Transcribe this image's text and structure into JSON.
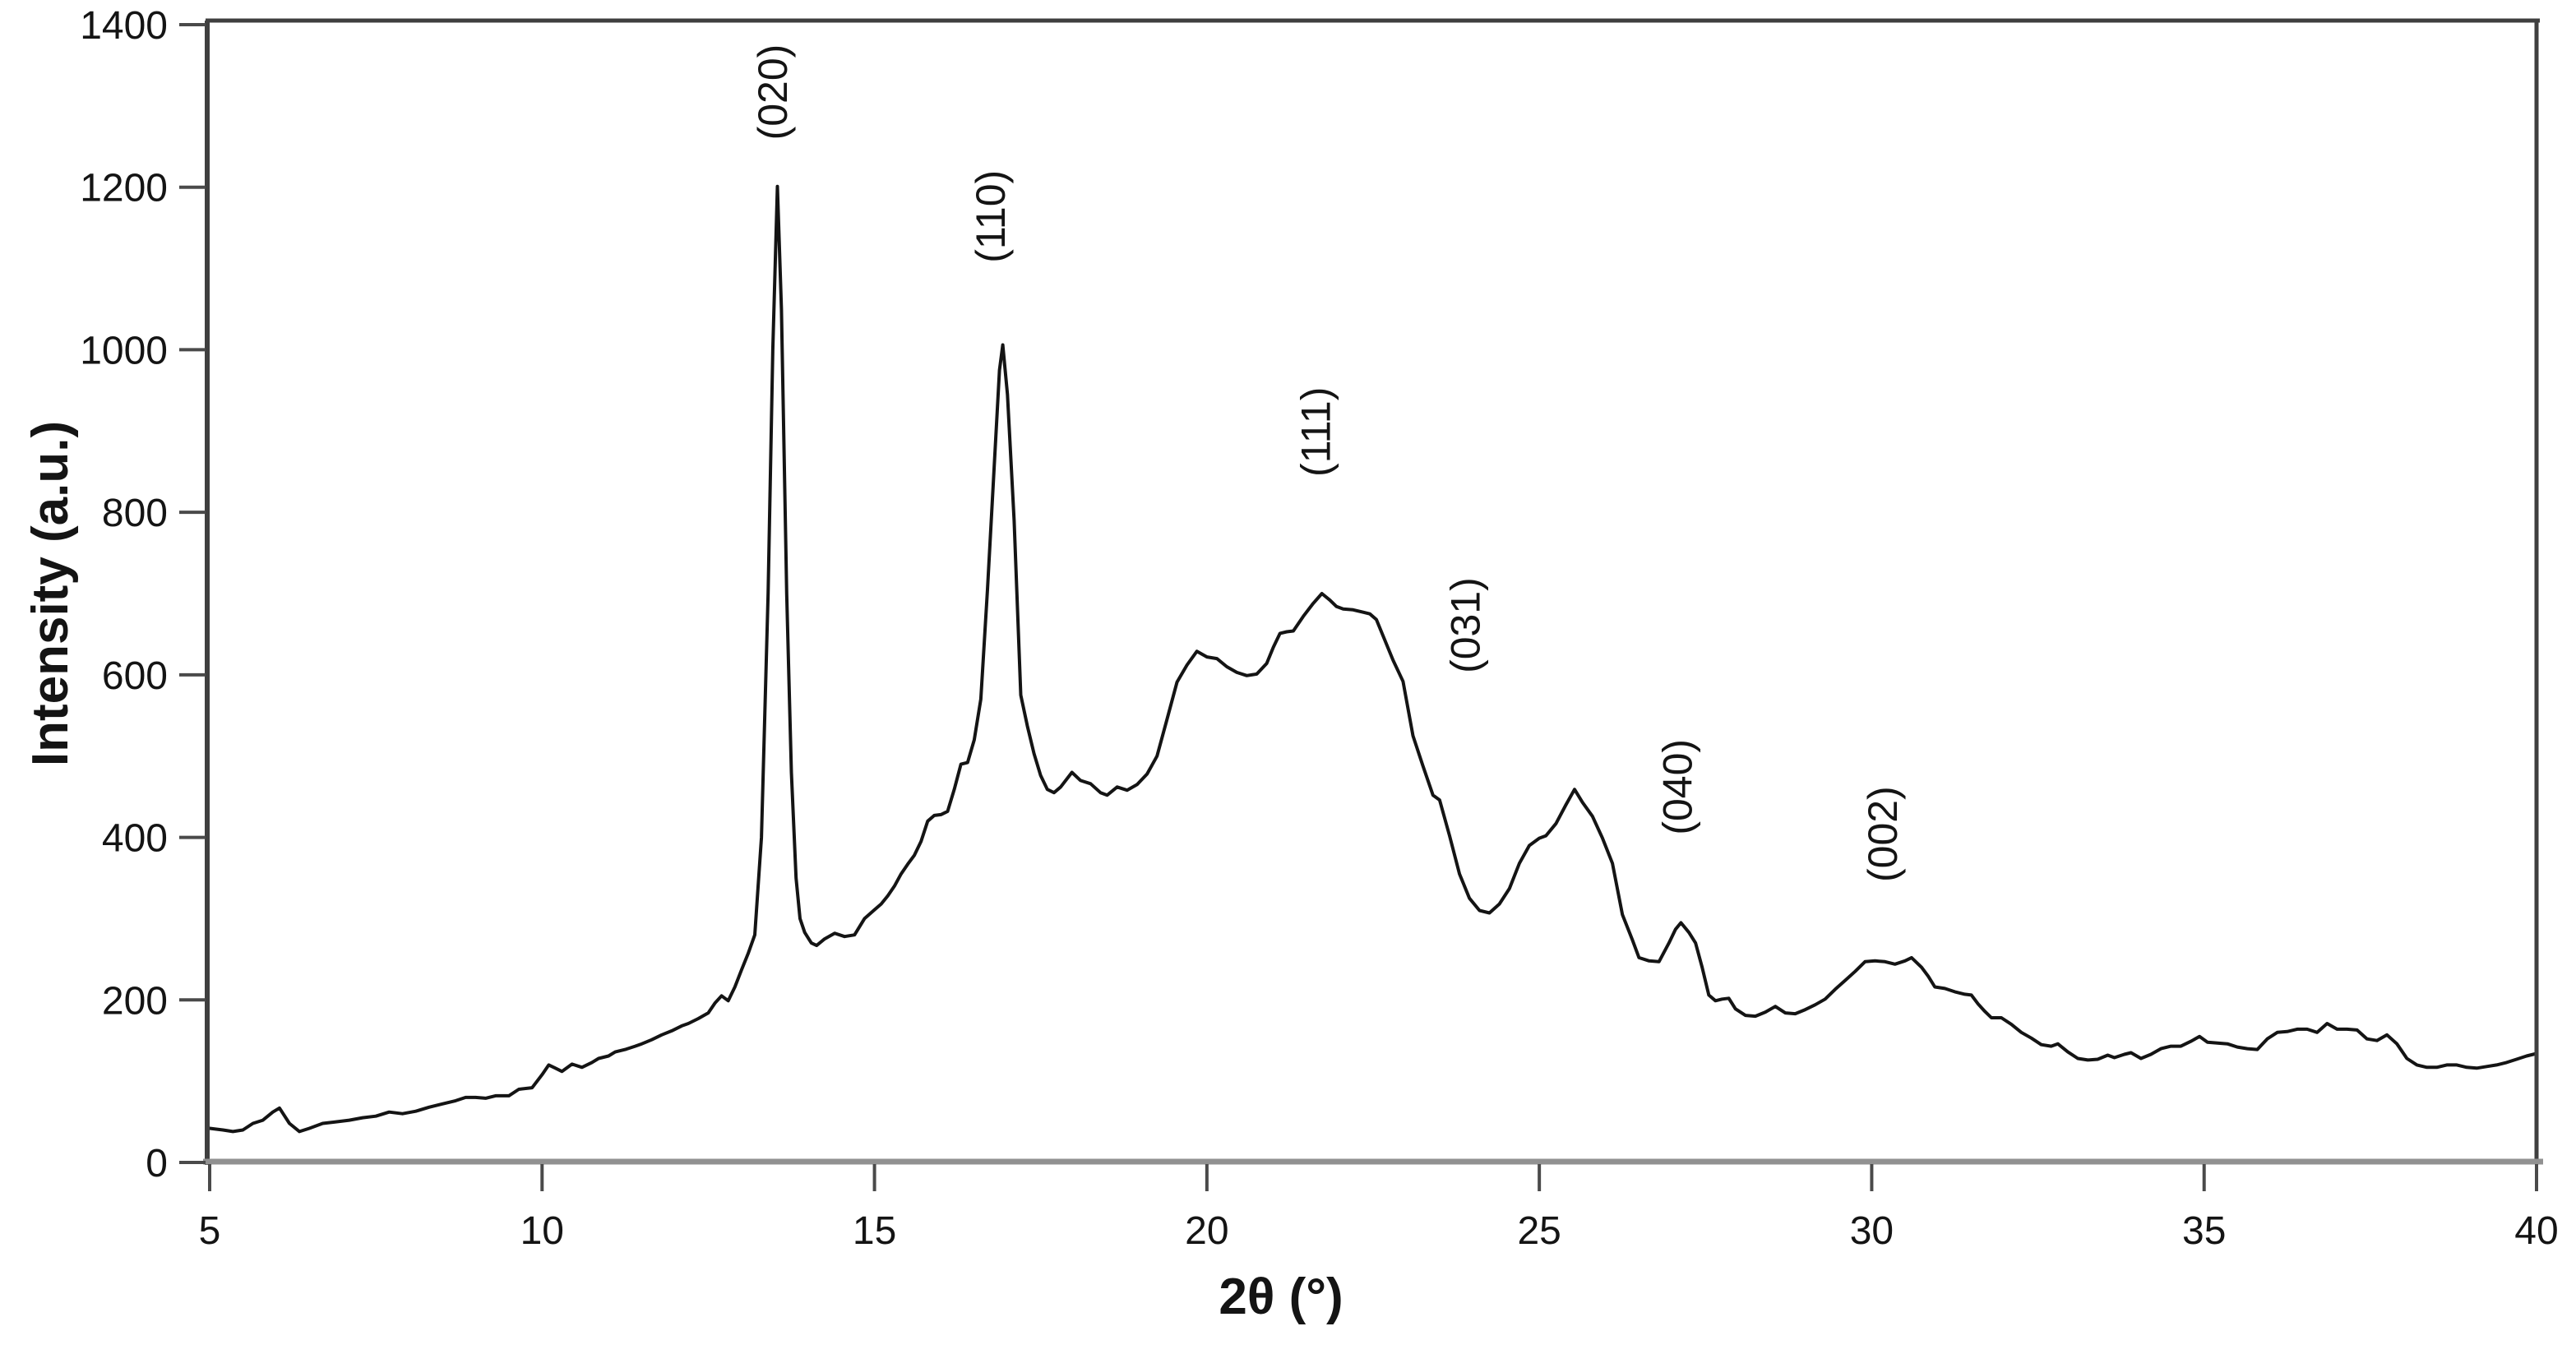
{
  "figure": {
    "description": "X-ray diffraction pattern with indexed peaks",
    "background_color": "#ffffff",
    "line_color": "#141414",
    "frame_color": "#3f3f3f",
    "baseline_color": "#919191",
    "tick_color": "#4a4a4a",
    "text_color": "#141414"
  },
  "chart_data": {
    "type": "line",
    "title": "",
    "xlabel": "2θ (°)",
    "ylabel": "Intensity (a.u.)",
    "xlim": [
      5,
      40
    ],
    "ylim": [
      0,
      1400
    ],
    "x_ticks": [
      5,
      10,
      15,
      20,
      25,
      30,
      35,
      40
    ],
    "y_ticks": [
      0,
      200,
      400,
      600,
      800,
      1000,
      1200,
      1400
    ],
    "grid": false,
    "legend": "none",
    "peaks": [
      {
        "hkl": "(020)",
        "two_theta": 13.54,
        "intensity": 1201,
        "label_two_theta": 13.47,
        "label_intensity": 1317
      },
      {
        "hkl": "(110)",
        "two_theta": 16.93,
        "intensity": 1006,
        "label_two_theta": 16.75,
        "label_intensity": 1164
      },
      {
        "hkl": "(111)",
        "two_theta": 21.73,
        "intensity": 700,
        "label_two_theta": 21.64,
        "label_intensity": 899
      },
      {
        "hkl": "(031)",
        "two_theta": 25.53,
        "intensity": 459,
        "label_two_theta": 23.89,
        "label_intensity": 661
      },
      {
        "hkl": "(040)",
        "two_theta": 27.13,
        "intensity": 295,
        "label_two_theta": 27.08,
        "label_intensity": 462
      },
      {
        "hkl": "(002)",
        "two_theta": 30.6,
        "intensity": 252,
        "label_two_theta": 30.17,
        "label_intensity": 404
      }
    ],
    "series": [
      {
        "name": "XRD pattern",
        "x": [
          5.0,
          5.2,
          5.35,
          5.5,
          5.65,
          5.8,
          5.95,
          6.05,
          6.2,
          6.35,
          6.5,
          6.7,
          6.9,
          7.1,
          7.3,
          7.5,
          7.7,
          7.9,
          8.1,
          8.3,
          8.5,
          8.7,
          8.85,
          9.0,
          9.15,
          9.3,
          9.5,
          9.65,
          9.85,
          10.0,
          10.1,
          10.2,
          10.3,
          10.45,
          10.6,
          10.75,
          10.85,
          11.0,
          11.1,
          11.25,
          11.4,
          11.5,
          11.65,
          11.8,
          11.95,
          12.1,
          12.2,
          12.35,
          12.5,
          12.6,
          12.7,
          12.8,
          12.9,
          13.0,
          13.1,
          13.2,
          13.3,
          13.4,
          13.47,
          13.54,
          13.6,
          13.68,
          13.75,
          13.82,
          13.88,
          13.95,
          14.05,
          14.13,
          14.25,
          14.4,
          14.55,
          14.7,
          14.85,
          15.0,
          15.1,
          15.2,
          15.3,
          15.4,
          15.5,
          15.6,
          15.7,
          15.8,
          15.9,
          16.0,
          16.1,
          16.2,
          16.3,
          16.4,
          16.5,
          16.6,
          16.7,
          16.8,
          16.88,
          16.93,
          17.0,
          17.1,
          17.2,
          17.3,
          17.4,
          17.5,
          17.6,
          17.7,
          17.8,
          17.97,
          18.1,
          18.25,
          18.4,
          18.5,
          18.65,
          18.8,
          18.95,
          19.1,
          19.25,
          19.4,
          19.55,
          19.7,
          19.85,
          20.0,
          20.15,
          20.3,
          20.45,
          20.6,
          20.75,
          20.9,
          21.0,
          21.1,
          21.2,
          21.3,
          21.45,
          21.6,
          21.73,
          21.85,
          21.95,
          22.05,
          22.2,
          22.35,
          22.45,
          22.55,
          22.65,
          22.8,
          22.95,
          23.1,
          23.25,
          23.4,
          23.5,
          23.65,
          23.8,
          23.95,
          24.1,
          24.25,
          24.4,
          24.55,
          24.7,
          24.85,
          25.0,
          25.1,
          25.25,
          25.4,
          25.53,
          25.65,
          25.8,
          25.95,
          26.1,
          26.25,
          26.4,
          26.5,
          26.65,
          26.8,
          26.95,
          27.05,
          27.13,
          27.25,
          27.35,
          27.45,
          27.55,
          27.65,
          27.75,
          27.85,
          27.95,
          28.1,
          28.25,
          28.4,
          28.55,
          28.7,
          28.85,
          29.0,
          29.15,
          29.3,
          29.45,
          29.6,
          29.75,
          29.9,
          30.05,
          30.2,
          30.35,
          30.5,
          30.6,
          30.75,
          30.85,
          30.95,
          31.1,
          31.25,
          31.4,
          31.5,
          31.6,
          31.7,
          31.8,
          31.95,
          32.1,
          32.25,
          32.4,
          32.55,
          32.7,
          32.8,
          32.95,
          33.1,
          33.25,
          33.4,
          33.55,
          33.65,
          33.8,
          33.9,
          34.05,
          34.2,
          34.35,
          34.5,
          34.65,
          34.8,
          34.93,
          35.05,
          35.2,
          35.35,
          35.5,
          35.65,
          35.8,
          35.95,
          36.1,
          36.25,
          36.4,
          36.55,
          36.7,
          36.85,
          37.0,
          37.15,
          37.3,
          37.45,
          37.6,
          37.75,
          37.9,
          38.05,
          38.2,
          38.35,
          38.5,
          38.65,
          38.8,
          38.95,
          39.1,
          39.25,
          39.4,
          39.55,
          39.7,
          39.85,
          40.0
        ],
        "y": [
          42,
          40,
          38,
          40,
          48,
          52,
          62,
          67,
          48,
          38,
          42,
          48,
          50,
          52,
          55,
          57,
          62,
          60,
          63,
          68,
          72,
          76,
          80,
          80,
          79,
          82,
          82,
          90,
          92,
          108,
          120,
          116,
          112,
          121,
          117,
          123,
          128,
          131,
          136,
          139,
          143,
          146,
          151,
          157,
          162,
          168,
          171,
          177,
          184,
          196,
          205,
          199,
          216,
          237,
          257,
          280,
          400,
          700,
          1000,
          1201,
          1050,
          700,
          480,
          350,
          300,
          283,
          270,
          267,
          275,
          282,
          278,
          280,
          300,
          311,
          318,
          328,
          340,
          355,
          367,
          378,
          395,
          420,
          427,
          428,
          432,
          459,
          490,
          492,
          520,
          570,
          705,
          855,
          975,
          1006,
          945,
          790,
          575,
          537,
          503,
          476,
          459,
          455,
          462,
          480,
          470,
          466,
          455,
          452,
          462,
          458,
          465,
          478,
          500,
          545,
          591,
          612,
          629,
          622,
          620,
          610,
          603,
          599,
          601,
          614,
          634,
          651,
          653,
          654,
          672,
          688,
          700,
          692,
          684,
          681,
          680,
          677,
          675,
          668,
          648,
          618,
          592,
          525,
          488,
          452,
          446,
          402,
          355,
          325,
          310,
          307,
          318,
          337,
          368,
          390,
          399,
          402,
          417,
          440,
          459,
          443,
          426,
          399,
          368,
          305,
          274,
          252,
          248,
          247,
          270,
          287,
          295,
          283,
          270,
          240,
          206,
          199,
          201,
          202,
          189,
          181,
          180,
          185,
          192,
          184,
          183,
          188,
          194,
          201,
          213,
          224,
          235,
          247,
          248,
          247,
          244,
          248,
          252,
          240,
          229,
          216,
          214,
          210,
          207,
          206,
          195,
          186,
          178,
          178,
          170,
          160,
          153,
          145,
          143,
          146,
          136,
          128,
          126,
          127,
          132,
          129,
          133,
          135,
          128,
          133,
          140,
          143,
          143,
          149,
          155,
          148,
          147,
          146,
          142,
          140,
          139,
          152,
          160,
          161,
          164,
          164,
          160,
          171,
          164,
          164,
          163,
          152,
          150,
          157,
          146,
          128,
          120,
          117,
          117,
          120,
          120,
          117,
          116,
          118,
          120,
          123,
          127,
          131,
          134
        ]
      }
    ]
  }
}
